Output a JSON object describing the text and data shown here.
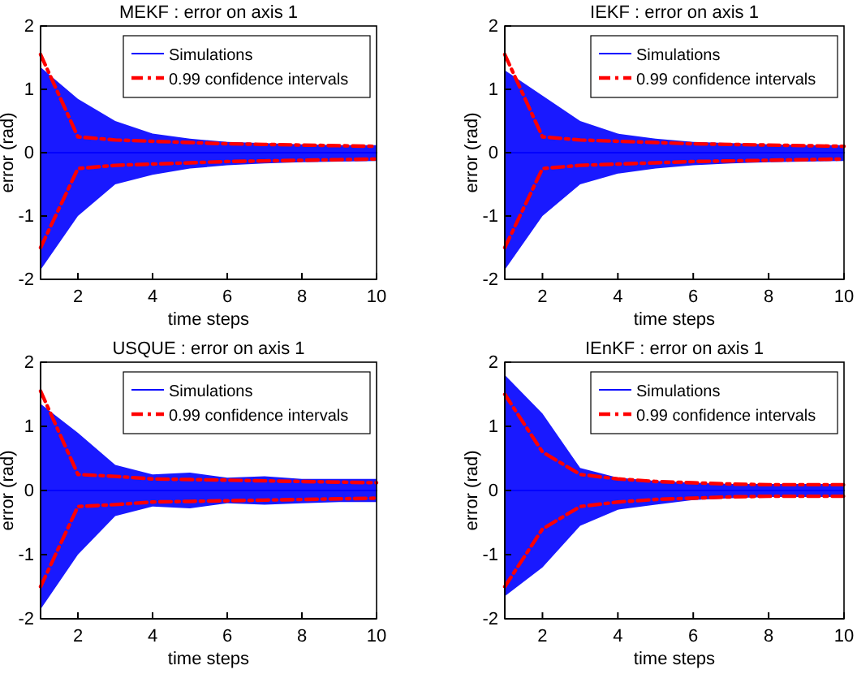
{
  "chart_data": [
    {
      "type": "line",
      "title": "MEKF : error on axis 1",
      "xlabel": "time steps",
      "ylabel": "error (rad)",
      "x": [
        1,
        2,
        3,
        4,
        5,
        6,
        7,
        8,
        9,
        10
      ],
      "xlim": [
        1,
        10
      ],
      "xticks": [
        2,
        4,
        6,
        8,
        10
      ],
      "ylim": [
        -2,
        2
      ],
      "yticks": [
        -2,
        -1,
        0,
        1,
        2
      ],
      "grid": false,
      "legend": "top right",
      "series": [
        {
          "name": "Simulations",
          "color": "#0000ff",
          "values": [
            0,
            0,
            0,
            0,
            0,
            0,
            0,
            0,
            0,
            0
          ],
          "lower": [
            -1.85,
            -1.0,
            -0.5,
            -0.35,
            -0.25,
            -0.2,
            -0.17,
            -0.15,
            -0.14,
            -0.13
          ],
          "upper": [
            1.35,
            0.85,
            0.5,
            0.3,
            0.22,
            0.17,
            0.15,
            0.13,
            0.12,
            0.12
          ]
        },
        {
          "name": "0.99 confidence intervals",
          "color": "#ff0000",
          "line_style": "dashed",
          "values": [
            1.55,
            0.25,
            0.2,
            0.18,
            0.16,
            0.14,
            0.13,
            0.12,
            0.11,
            0.1
          ]
        },
        {
          "color": "#ff0000",
          "line_style": "dashed",
          "values": [
            -1.5,
            -0.25,
            -0.2,
            -0.18,
            -0.16,
            -0.14,
            -0.13,
            -0.12,
            -0.11,
            -0.1
          ]
        }
      ]
    },
    {
      "type": "line",
      "title": "IEKF : error on axis 1",
      "xlabel": "time steps",
      "ylabel": "error (rad)",
      "x": [
        1,
        2,
        3,
        4,
        5,
        6,
        7,
        8,
        9,
        10
      ],
      "xlim": [
        1,
        10
      ],
      "xticks": [
        2,
        4,
        6,
        8,
        10
      ],
      "ylim": [
        -2,
        2
      ],
      "yticks": [
        -2,
        -1,
        0,
        1,
        2
      ],
      "grid": false,
      "legend": "top right",
      "series": [
        {
          "name": "Simulations",
          "color": "#0000ff",
          "values": [
            0,
            0,
            0,
            0,
            0,
            0,
            0,
            0,
            0,
            0
          ],
          "lower": [
            -1.85,
            -1.0,
            -0.5,
            -0.33,
            -0.25,
            -0.2,
            -0.17,
            -0.15,
            -0.14,
            -0.13
          ],
          "upper": [
            1.3,
            0.9,
            0.5,
            0.3,
            0.22,
            0.17,
            0.15,
            0.13,
            0.12,
            0.12
          ]
        },
        {
          "name": "0.99 confidence intervals",
          "color": "#ff0000",
          "line_style": "dashed",
          "values": [
            1.55,
            0.25,
            0.2,
            0.18,
            0.16,
            0.14,
            0.13,
            0.12,
            0.11,
            0.1
          ]
        },
        {
          "color": "#ff0000",
          "line_style": "dashed",
          "values": [
            -1.5,
            -0.25,
            -0.2,
            -0.18,
            -0.16,
            -0.14,
            -0.13,
            -0.12,
            -0.11,
            -0.1
          ]
        }
      ]
    },
    {
      "type": "line",
      "title": "USQUE : error on axis 1",
      "xlabel": "time steps",
      "ylabel": "error (rad)",
      "x": [
        1,
        2,
        3,
        4,
        5,
        6,
        7,
        8,
        9,
        10
      ],
      "xlim": [
        1,
        10
      ],
      "xticks": [
        2,
        4,
        6,
        8,
        10
      ],
      "ylim": [
        -2,
        2
      ],
      "yticks": [
        -2,
        -1,
        0,
        1,
        2
      ],
      "grid": false,
      "legend": "top right",
      "series": [
        {
          "name": "Simulations",
          "color": "#0000ff",
          "values": [
            0,
            0,
            0,
            0,
            0,
            0,
            0,
            0,
            0,
            0
          ],
          "lower": [
            -1.85,
            -1.0,
            -0.4,
            -0.25,
            -0.28,
            -0.2,
            -0.22,
            -0.2,
            -0.18,
            -0.18
          ],
          "upper": [
            1.35,
            0.9,
            0.4,
            0.25,
            0.28,
            0.2,
            0.22,
            0.18,
            0.18,
            0.18
          ]
        },
        {
          "name": "0.99 confidence intervals",
          "color": "#ff0000",
          "line_style": "dashed",
          "values": [
            1.55,
            0.25,
            0.22,
            0.18,
            0.17,
            0.16,
            0.15,
            0.14,
            0.13,
            0.12
          ]
        },
        {
          "color": "#ff0000",
          "line_style": "dashed",
          "values": [
            -1.5,
            -0.25,
            -0.22,
            -0.18,
            -0.17,
            -0.16,
            -0.15,
            -0.14,
            -0.13,
            -0.12
          ]
        }
      ]
    },
    {
      "type": "line",
      "title": "IEnKF : error on axis 1",
      "xlabel": "time steps",
      "ylabel": "error (rad)",
      "x": [
        1,
        2,
        3,
        4,
        5,
        6,
        7,
        8,
        9,
        10
      ],
      "xlim": [
        1,
        10
      ],
      "xticks": [
        2,
        4,
        6,
        8,
        10
      ],
      "ylim": [
        -2,
        2
      ],
      "yticks": [
        -2,
        -1,
        0,
        1,
        2
      ],
      "grid": false,
      "legend": "top right",
      "series": [
        {
          "name": "Simulations",
          "color": "#0000ff",
          "values": [
            0,
            0,
            0,
            0,
            0,
            0,
            0,
            0,
            0,
            0
          ],
          "lower": [
            -1.65,
            -1.2,
            -0.55,
            -0.3,
            -0.22,
            -0.15,
            -0.12,
            -0.1,
            -0.1,
            -0.1
          ],
          "upper": [
            1.8,
            1.2,
            0.35,
            0.2,
            0.15,
            0.12,
            0.1,
            0.1,
            0.1,
            0.1
          ]
        },
        {
          "name": "0.99 confidence intervals",
          "color": "#ff0000",
          "line_style": "dashed",
          "values": [
            1.5,
            0.6,
            0.25,
            0.18,
            0.14,
            0.12,
            0.1,
            0.09,
            0.09,
            0.09
          ]
        },
        {
          "color": "#ff0000",
          "line_style": "dashed",
          "values": [
            -1.5,
            -0.6,
            -0.25,
            -0.18,
            -0.14,
            -0.12,
            -0.1,
            -0.09,
            -0.09,
            -0.09
          ]
        }
      ]
    }
  ]
}
